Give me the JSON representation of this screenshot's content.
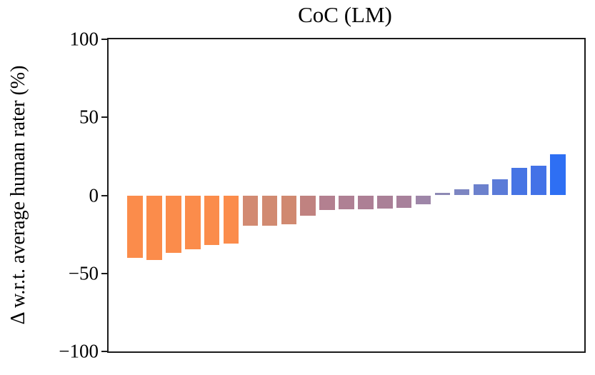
{
  "figure": {
    "title": "CoC (LM)",
    "ylabel": "Δ w.r.t. average human rater (%)"
  },
  "chart_data": {
    "type": "bar",
    "title": "CoC (LM)",
    "xlabel": "",
    "ylabel": "Δ w.r.t. average human rater (%)",
    "ylim": [
      -100,
      100
    ],
    "ytick_values": [
      100,
      50,
      0,
      -50,
      -100
    ],
    "ytick_labels": [
      "100",
      "50",
      "0",
      "−50",
      "−100"
    ],
    "x_tick_labels_shown": false,
    "grid": false,
    "legend": false,
    "n_bars": 23,
    "values": [
      -40.2,
      -41.4,
      -36.8,
      -34.5,
      -32.0,
      -30.8,
      -19.4,
      -19.3,
      -18.4,
      -13.2,
      -9.3,
      -8.8,
      -8.8,
      -8.4,
      -7.9,
      -5.7,
      1.8,
      3.7,
      7.1,
      10.1,
      17.4,
      18.8,
      26.5
    ],
    "bar_colors": [
      "#fb8c4b",
      "#fb8c4b",
      "#fb8c4b",
      "#fb8c4b",
      "#fb8c4b",
      "#fb8c4b",
      "#d28a72",
      "#d18a71",
      "#d08970",
      "#c08280",
      "#b38090",
      "#af8094",
      "#ad7f95",
      "#aa8097",
      "#a8819b",
      "#9e86a8",
      "#8d89b4",
      "#7d86c2",
      "#6c81cd",
      "#5b7bd8",
      "#4674e4",
      "#4372e7",
      "#2e6ff3"
    ],
    "axis_color": "#1b1b1b",
    "value_note": "values are percent delta w.r.t. average human rater, read from axis scale -100..100"
  }
}
